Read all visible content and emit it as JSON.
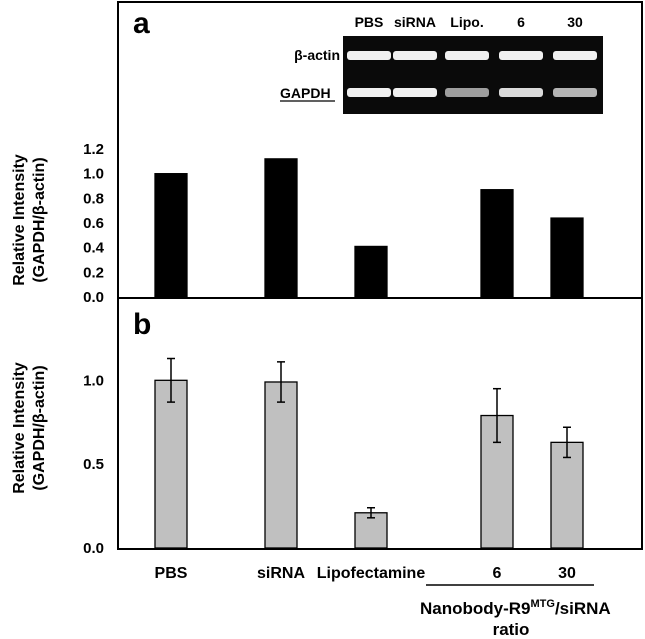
{
  "panel_a_label": "a",
  "panel_b_label": "b",
  "blot": {
    "lane_labels": [
      "PBS",
      "siRNA",
      "Lipo.",
      "6",
      "30"
    ],
    "row_labels": [
      "β-actin",
      "GAPDH"
    ],
    "band_intensity": {
      "β-actin": [
        1.0,
        1.0,
        1.0,
        1.0,
        1.0
      ],
      "GAPDH": [
        1.0,
        1.0,
        0.45,
        0.85,
        0.6
      ]
    }
  },
  "bottom_labels": {
    "group_label_line1": "Nanobody-R9",
    "group_label_superscript": "MTG",
    "group_label_line1_suffix": "/siRNA",
    "group_label_line2": "ratio"
  },
  "chart_data": [
    {
      "type": "bar",
      "panel": "a",
      "categories": [
        "PBS",
        "siRNA",
        "Lipofectamine",
        "6",
        "30"
      ],
      "values": [
        1.0,
        1.12,
        0.41,
        0.87,
        0.64
      ],
      "ylabel_line1": "Relative Intensity",
      "ylabel_line2": "(GAPDH/β-actin)",
      "ylim": [
        0,
        1.2
      ],
      "yticks": [
        "0.0",
        "0.2",
        "0.4",
        "0.6",
        "0.8",
        "1.0",
        "1.2"
      ],
      "bar_color": "#000000",
      "grid": false
    },
    {
      "type": "bar",
      "panel": "b",
      "categories": [
        "PBS",
        "siRNA",
        "Lipofectamine",
        "6",
        "30"
      ],
      "values": [
        1.0,
        0.99,
        0.21,
        0.79,
        0.63
      ],
      "errors": [
        0.13,
        0.12,
        0.03,
        0.16,
        0.09
      ],
      "ylabel_line1": "Relative Intensity",
      "ylabel_line2": "(GAPDH/β-actin)",
      "ylim": [
        0,
        1.3
      ],
      "yticks": [
        "0.0",
        "0.5",
        "1.0"
      ],
      "bar_color": "#c0c0c0",
      "grid": false
    }
  ]
}
